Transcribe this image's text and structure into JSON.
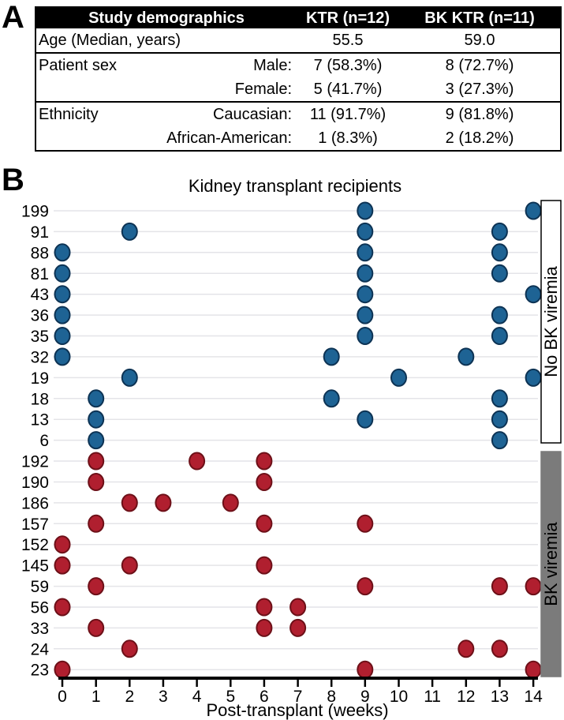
{
  "meta": {
    "panel_a_label": "A",
    "panel_b_label": "B"
  },
  "table": {
    "header": {
      "col1": "Study demographics",
      "col2": "KTR (n=12)",
      "col3": "BK KTR (n=11)"
    },
    "rows": [
      {
        "label": "Age (Median, years)",
        "sublabel": "",
        "ktr": "55.5",
        "bk": "59.0",
        "section_start": true
      },
      {
        "label": "Patient sex",
        "sublabel": "Male:",
        "ktr": "7 (58.3%)",
        "bk": "8 (72.7%)",
        "section_start": true
      },
      {
        "label": "",
        "sublabel": "Female:",
        "ktr": "5 (41.7%)",
        "bk": "3 (27.3%)",
        "section_start": false
      },
      {
        "label": "Ethnicity",
        "sublabel": "Caucasian:",
        "ktr": "11 (91.7%)",
        "bk": "9 (81.8%)",
        "section_start": true
      },
      {
        "label": "",
        "sublabel": "African-American:",
        "ktr": "1 (8.3%)",
        "bk": "2 (18.2%)",
        "section_start": false
      }
    ]
  },
  "chart_data": {
    "type": "scatter",
    "title": "Kidney transplant recipients",
    "xlabel": "Post-transplant (weeks)",
    "xlim": [
      0,
      14
    ],
    "x_ticks": [
      0,
      1,
      2,
      3,
      4,
      5,
      6,
      7,
      8,
      9,
      10,
      11,
      12,
      13,
      14
    ],
    "grid": "horizontal-only",
    "legend_position": "right-vertical-boxes",
    "colors": {
      "no_bk_fill": "#1e6394",
      "no_bk_stroke": "#0d3354",
      "bk_fill": "#b01f2f",
      "bk_stroke": "#6d1018",
      "gridline": "#e4e4e8",
      "box_gray": "#7b7b7b",
      "axis": "#000000"
    },
    "groups": [
      {
        "name": "No BK viremia",
        "fill": "#1e6394",
        "stroke": "#0d3354",
        "rows": [
          {
            "id": "199",
            "weeks": [
              9,
              14
            ]
          },
          {
            "id": "91",
            "weeks": [
              2,
              9,
              13
            ]
          },
          {
            "id": "88",
            "weeks": [
              0,
              9,
              13
            ]
          },
          {
            "id": "81",
            "weeks": [
              0,
              9,
              13
            ]
          },
          {
            "id": "43",
            "weeks": [
              0,
              9,
              14
            ]
          },
          {
            "id": "36",
            "weeks": [
              0,
              9,
              13
            ]
          },
          {
            "id": "35",
            "weeks": [
              0,
              9,
              13
            ]
          },
          {
            "id": "32",
            "weeks": [
              0,
              8,
              12
            ]
          },
          {
            "id": "19",
            "weeks": [
              2,
              10,
              14
            ]
          },
          {
            "id": "18",
            "weeks": [
              1,
              8,
              13
            ]
          },
          {
            "id": "13",
            "weeks": [
              1,
              9,
              13
            ]
          },
          {
            "id": "6",
            "weeks": [
              1,
              13
            ]
          }
        ]
      },
      {
        "name": "BK viremia",
        "fill": "#b01f2f",
        "stroke": "#6d1018",
        "rows": [
          {
            "id": "192",
            "weeks": [
              1,
              4,
              6
            ]
          },
          {
            "id": "190",
            "weeks": [
              1,
              6
            ]
          },
          {
            "id": "186",
            "weeks": [
              2,
              3,
              5
            ]
          },
          {
            "id": "157",
            "weeks": [
              1,
              6,
              9
            ]
          },
          {
            "id": "152",
            "weeks": [
              0
            ]
          },
          {
            "id": "145",
            "weeks": [
              0,
              2,
              6
            ]
          },
          {
            "id": "59",
            "weeks": [
              1,
              9,
              13,
              14
            ]
          },
          {
            "id": "56",
            "weeks": [
              0,
              6,
              7
            ]
          },
          {
            "id": "33",
            "weeks": [
              1,
              6,
              7
            ]
          },
          {
            "id": "24",
            "weeks": [
              2,
              12,
              13
            ]
          },
          {
            "id": "23",
            "weeks": [
              0,
              9,
              14
            ]
          }
        ]
      }
    ]
  }
}
